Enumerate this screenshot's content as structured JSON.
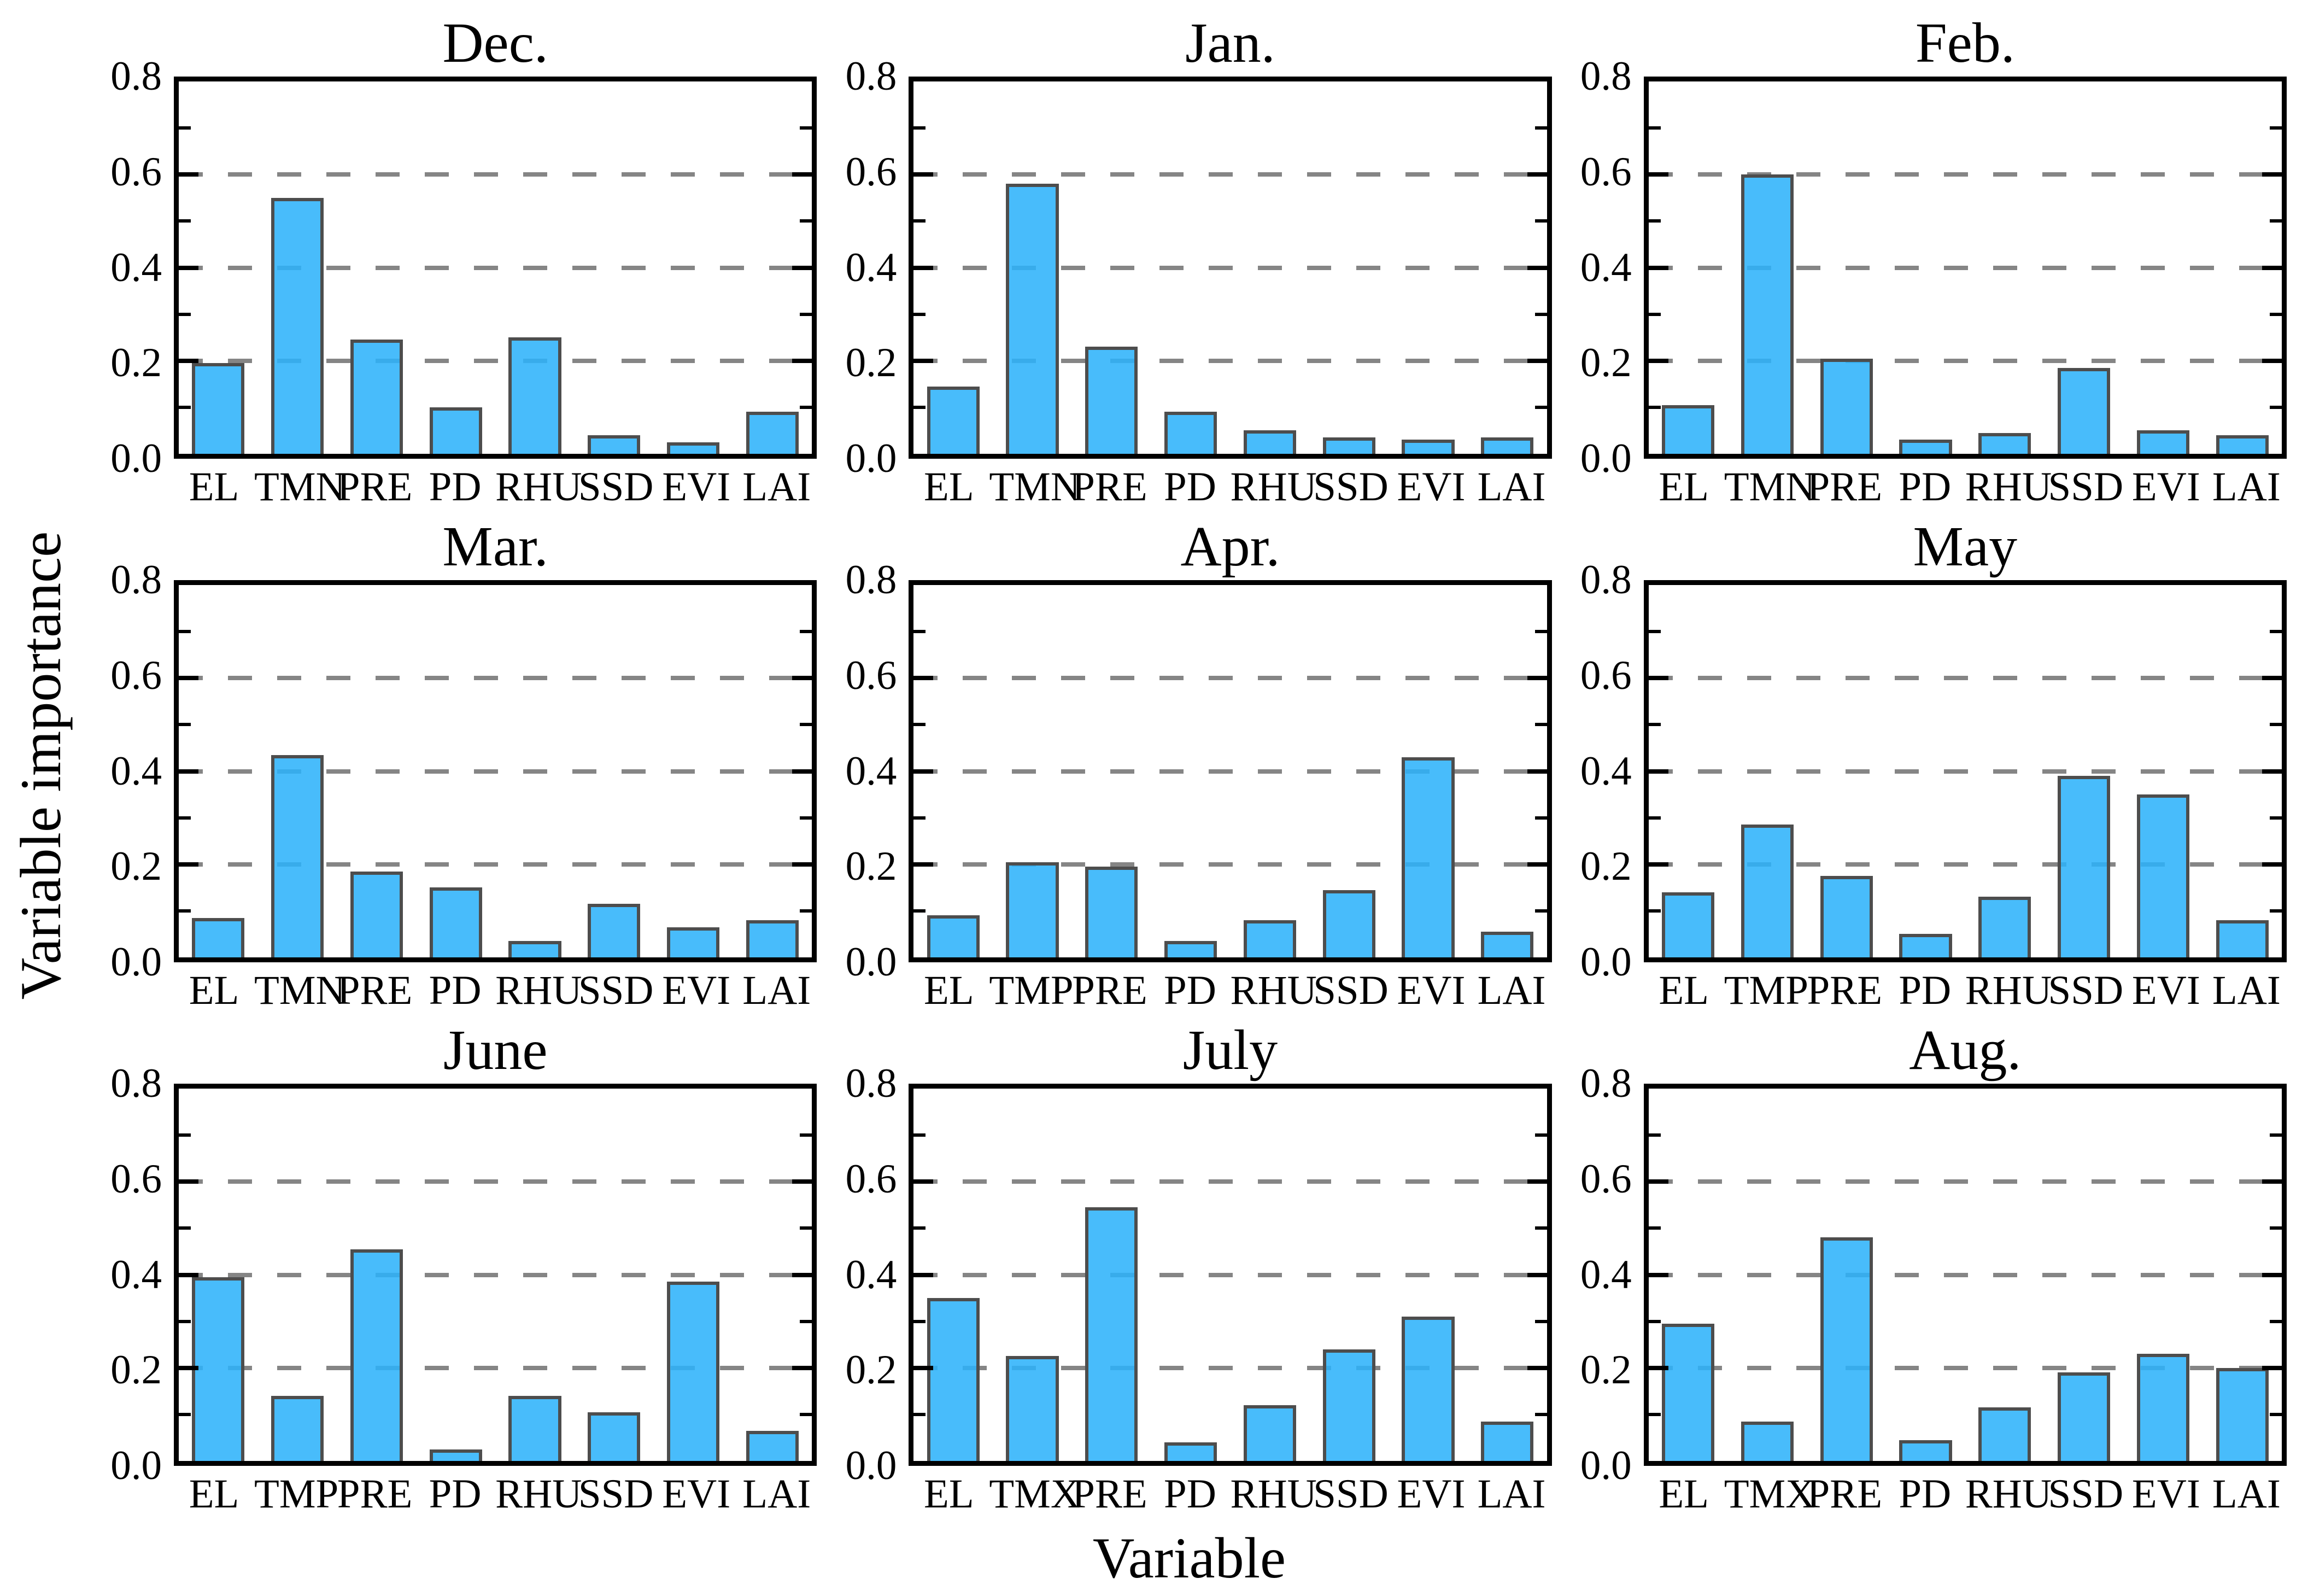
{
  "figure": {
    "ylabel": "Variable importance",
    "xlabel": "Variable",
    "colors": {
      "bar_fill": "#3BB8F8",
      "bar_border": "#4D4D4D",
      "gridline": "#858585",
      "axis": "#000000",
      "background": "#FFFFFF"
    },
    "axis": {
      "ymin": 0.0,
      "ymax": 0.8,
      "ytick_labels": [
        "0.0",
        "0.2",
        "0.4",
        "0.6",
        "0.8"
      ],
      "minor_tick_values": [
        0.1,
        0.3,
        0.5,
        0.7
      ],
      "grid_values": [
        0.2,
        0.4,
        0.6
      ],
      "grid_style": "dashed"
    }
  },
  "chart_data": [
    {
      "type": "bar",
      "title": "Dec.",
      "categories": [
        "EL",
        "TMN",
        "PRE",
        "PD",
        "RHU",
        "SSD",
        "EVI",
        "LAI"
      ],
      "values": [
        0.195,
        0.55,
        0.245,
        0.1,
        0.25,
        0.04,
        0.025,
        0.09
      ],
      "xlabel": "",
      "ylabel": "",
      "ylim": [
        0,
        0.8
      ]
    },
    {
      "type": "bar",
      "title": "Jan.",
      "categories": [
        "EL",
        "TMN",
        "PRE",
        "PD",
        "RHU",
        "SSD",
        "EVI",
        "LAI"
      ],
      "values": [
        0.145,
        0.58,
        0.23,
        0.09,
        0.05,
        0.035,
        0.03,
        0.035
      ],
      "xlabel": "",
      "ylabel": "",
      "ylim": [
        0,
        0.8
      ]
    },
    {
      "type": "bar",
      "title": "Feb.",
      "categories": [
        "EL",
        "TMN",
        "PRE",
        "PD",
        "RHU",
        "SSD",
        "EVI",
        "LAI"
      ],
      "values": [
        0.105,
        0.6,
        0.205,
        0.03,
        0.045,
        0.185,
        0.05,
        0.04
      ],
      "xlabel": "",
      "ylabel": "",
      "ylim": [
        0,
        0.8
      ]
    },
    {
      "type": "bar",
      "title": "Mar.",
      "categories": [
        "EL",
        "TMN",
        "PRE",
        "PD",
        "RHU",
        "SSD",
        "EVI",
        "LAI"
      ],
      "values": [
        0.085,
        0.435,
        0.185,
        0.15,
        0.035,
        0.115,
        0.065,
        0.08
      ],
      "xlabel": "",
      "ylabel": "",
      "ylim": [
        0,
        0.8
      ]
    },
    {
      "type": "bar",
      "title": "Apr.",
      "categories": [
        "EL",
        "TMP",
        "PRE",
        "PD",
        "RHU",
        "SSD",
        "EVI",
        "LAI"
      ],
      "values": [
        0.09,
        0.205,
        0.195,
        0.035,
        0.08,
        0.145,
        0.43,
        0.055
      ],
      "xlabel": "",
      "ylabel": "",
      "ylim": [
        0,
        0.8
      ]
    },
    {
      "type": "bar",
      "title": "May",
      "categories": [
        "EL",
        "TMP",
        "PRE",
        "PD",
        "RHU",
        "SSD",
        "EVI",
        "LAI"
      ],
      "values": [
        0.14,
        0.285,
        0.175,
        0.05,
        0.13,
        0.39,
        0.35,
        0.08
      ],
      "xlabel": "",
      "ylabel": "",
      "ylim": [
        0,
        0.8
      ]
    },
    {
      "type": "bar",
      "title": "June",
      "categories": [
        "EL",
        "TMP",
        "PRE",
        "PD",
        "RHU",
        "SSD",
        "EVI",
        "LAI"
      ],
      "values": [
        0.395,
        0.14,
        0.455,
        0.025,
        0.14,
        0.105,
        0.385,
        0.065
      ],
      "xlabel": "",
      "ylabel": "",
      "ylim": [
        0,
        0.8
      ]
    },
    {
      "type": "bar",
      "title": "July",
      "categories": [
        "EL",
        "TMX",
        "PRE",
        "PD",
        "RHU",
        "SSD",
        "EVI",
        "LAI"
      ],
      "values": [
        0.35,
        0.225,
        0.545,
        0.04,
        0.12,
        0.24,
        0.31,
        0.085
      ],
      "xlabel": "",
      "ylabel": "",
      "ylim": [
        0,
        0.8
      ]
    },
    {
      "type": "bar",
      "title": "Aug.",
      "categories": [
        "EL",
        "TMX",
        "PRE",
        "PD",
        "RHU",
        "SSD",
        "EVI",
        "LAI"
      ],
      "values": [
        0.295,
        0.085,
        0.48,
        0.045,
        0.115,
        0.19,
        0.23,
        0.2
      ],
      "xlabel": "",
      "ylabel": "",
      "ylim": [
        0,
        0.8
      ]
    }
  ]
}
